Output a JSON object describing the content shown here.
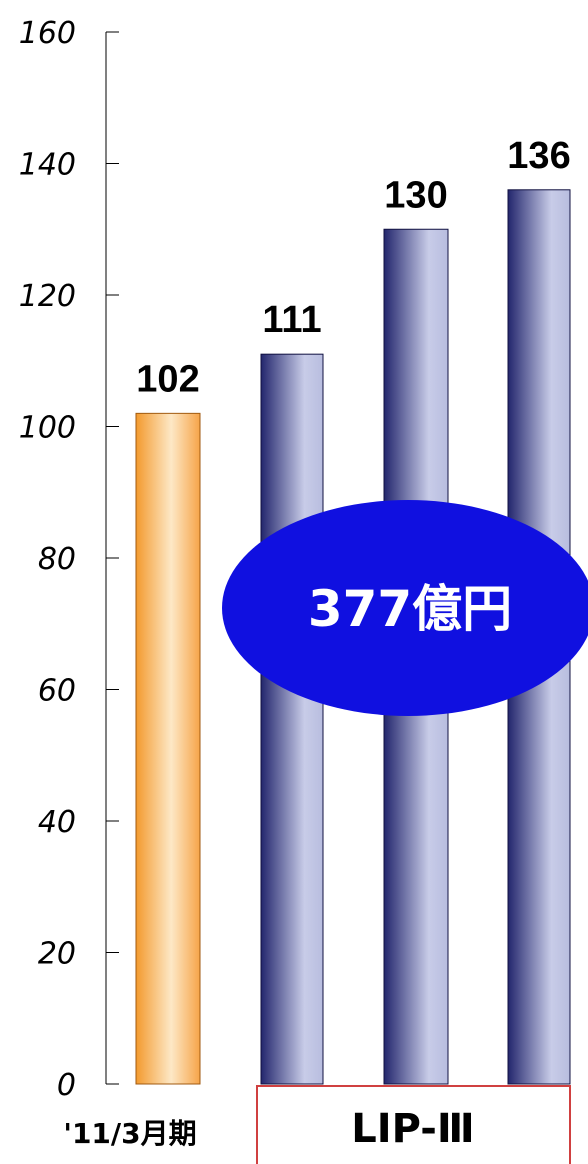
{
  "chart_data": {
    "type": "bar",
    "categories": [
      "'11/3月期",
      "",
      "",
      ""
    ],
    "values": [
      102,
      111,
      130,
      136
    ],
    "data_labels": [
      "102",
      "111",
      "130",
      "136"
    ],
    "ylim": [
      0,
      160
    ],
    "yticks": [
      0,
      20,
      40,
      60,
      80,
      100,
      120,
      140,
      160
    ],
    "grid": false,
    "legend": "none",
    "colors": {
      "actual": "#f5a040",
      "plan": "#2a2d78",
      "plan_highlight": "#c8cce8",
      "callout_fill": "#1010e0",
      "group_box": "#d04040"
    },
    "annotations": {
      "callout": "377億円",
      "group_label": "LIP-Ⅲ"
    }
  }
}
